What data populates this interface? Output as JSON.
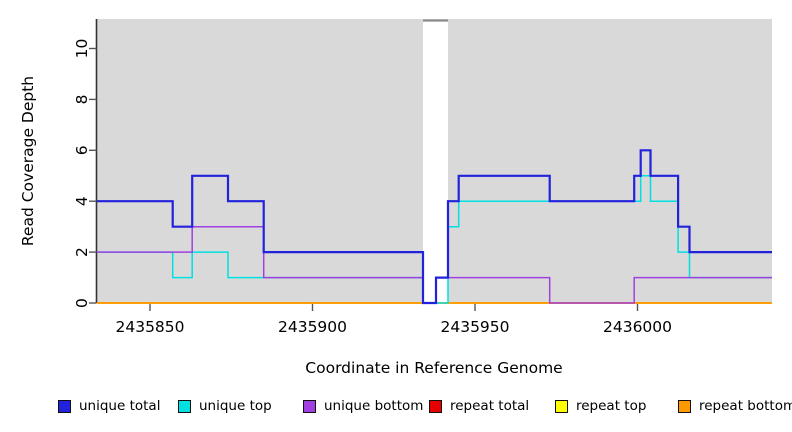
{
  "figure": {
    "background": "#ffffff"
  },
  "chart_data": {
    "type": "line",
    "subtype": "step",
    "title": "",
    "xlabel": "Coordinate in Reference Genome",
    "ylabel": "Read Coverage Depth",
    "xlim": [
      2435833.7,
      2436041.4
    ],
    "ylim": [
      0,
      11.16
    ],
    "xticks": [
      2435850,
      2435900,
      2435950,
      2436000
    ],
    "yticks": [
      0,
      2,
      4,
      6,
      8,
      10
    ],
    "grid": false,
    "legend_position": "bottom",
    "panel_background": "#d9d9d9",
    "axis_color": "#333333",
    "tick_color": "#555555",
    "masked_region": {
      "x0": 2435934,
      "x1": 2435941.7,
      "fill": "#ffffff",
      "cap_color": "#8a8a8a"
    },
    "draw_order": [
      3,
      4,
      5,
      1,
      2,
      0
    ],
    "series": [
      {
        "name": "unique total",
        "color": "#2222dd",
        "line_width": 2.2,
        "steps": [
          [
            2435833.7,
            4
          ],
          [
            2435857,
            3
          ],
          [
            2435863,
            5
          ],
          [
            2435874,
            4
          ],
          [
            2435885,
            2
          ],
          [
            2435934,
            0
          ],
          [
            2435938,
            1
          ],
          [
            2435941.7,
            4
          ],
          [
            2435945,
            5
          ],
          [
            2435973,
            4
          ],
          [
            2435999,
            5
          ],
          [
            2436001,
            6
          ],
          [
            2436004,
            5
          ],
          [
            2436012.5,
            3
          ],
          [
            2436016,
            2
          ]
        ]
      },
      {
        "name": "unique top",
        "color": "#00e0e0",
        "line_width": 1.5,
        "steps": [
          [
            2435833.7,
            2
          ],
          [
            2435857,
            1
          ],
          [
            2435863,
            2
          ],
          [
            2435874,
            1
          ],
          [
            2435934,
            0
          ],
          [
            2435941.7,
            3
          ],
          [
            2435945,
            4
          ],
          [
            2436001,
            5
          ],
          [
            2436004,
            4
          ],
          [
            2436012.5,
            2
          ],
          [
            2436016,
            1
          ]
        ]
      },
      {
        "name": "unique bottom",
        "color": "#a040e0",
        "line_width": 1.5,
        "steps": [
          [
            2435833.7,
            2
          ],
          [
            2435863,
            3
          ],
          [
            2435885,
            1
          ],
          [
            2435934,
            0
          ],
          [
            2435938,
            1
          ],
          [
            2435973,
            0
          ],
          [
            2435999,
            1
          ]
        ]
      },
      {
        "name": "repeat total",
        "color": "#e60000",
        "line_width": 1.5,
        "steps": [
          [
            2435833.7,
            0
          ]
        ]
      },
      {
        "name": "repeat top",
        "color": "#ffff00",
        "line_width": 1.5,
        "steps": [
          [
            2435833.7,
            0
          ]
        ]
      },
      {
        "name": "repeat bottom",
        "color": "#ff9900",
        "line_width": 1.8,
        "steps": [
          [
            2435833.7,
            0
          ]
        ]
      }
    ]
  }
}
